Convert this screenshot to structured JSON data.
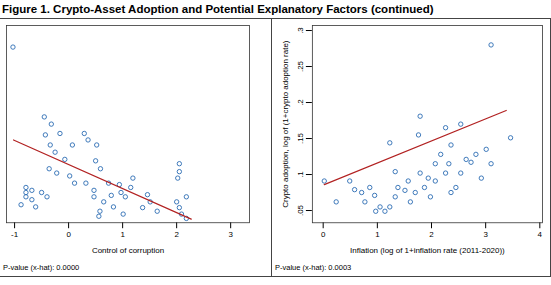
{
  "title": "Figure 1. Crypto-Asset Adoption and Potential Explanatory Factors (continued)",
  "chart_data": [
    {
      "type": "scatter",
      "x_label": "Control of corruption",
      "annotations": [
        "P-value (x-hat): 0.0000"
      ],
      "xlim": [
        -1.15,
        3.35
      ],
      "xticks": [
        -1,
        0,
        1,
        2,
        3
      ],
      "ylim": [
        0.033,
        0.307
      ],
      "tick_labels": "x",
      "series": [
        {
          "type": "scatter",
          "marker": "circle",
          "color": "#2a6bb3",
          "x": [
            -1.03,
            -0.45,
            -0.32,
            -0.16,
            -0.43,
            -0.34,
            -0.25,
            -0.07,
            0.07,
            -0.36,
            -0.22,
            0.02,
            0.11,
            -0.79,
            -0.79,
            -0.79,
            -0.68,
            -0.68,
            -0.88,
            -0.61,
            -0.5,
            -0.4,
            0.29,
            0.36,
            0.52,
            0.5,
            0.59,
            0.32,
            0.47,
            0.74,
            0.79,
            0.94,
            0.97,
            1.05,
            1.15,
            1.19,
            0.56,
            0.58,
            1.01,
            1.37,
            1.46,
            1.51,
            1.64,
            2.0,
            2.05,
            2.09,
            2.18,
            2.05,
            2.05,
            2.02,
            2.18,
            0.47,
            0.65,
            0.83
          ],
          "values": [
            0.277,
            0.18,
            0.17,
            0.157,
            0.155,
            0.141,
            0.131,
            0.121,
            0.141,
            0.108,
            0.102,
            0.098,
            0.088,
            0.082,
            0.075,
            0.069,
            0.078,
            0.065,
            0.058,
            0.055,
            0.075,
            0.069,
            0.157,
            0.148,
            0.141,
            0.119,
            0.108,
            0.088,
            0.078,
            0.088,
            0.071,
            0.086,
            0.075,
            0.069,
            0.082,
            0.095,
            0.042,
            0.049,
            0.045,
            0.054,
            0.072,
            0.062,
            0.049,
            0.062,
            0.054,
            0.045,
            0.039,
            0.115,
            0.104,
            0.095,
            0.069,
            0.069,
            0.062,
            0.055
          ]
        },
        {
          "type": "line",
          "color": "#b22222",
          "x": [
            -1.02,
            2.27
          ],
          "values": [
            0.148,
            0.038
          ]
        }
      ]
    },
    {
      "type": "scatter",
      "x_label": "Inflation (log of 1+inflation rate (2011-2020))",
      "y_label": "Crypto adoption, log of (1+crypto adoption rate)",
      "annotations": [
        "P-value (x-hat): 0.0003"
      ],
      "xlim": [
        -0.2,
        4.05
      ],
      "xticks": [
        0,
        1,
        2,
        3,
        4
      ],
      "ylim": [
        0.033,
        0.307
      ],
      "yticks": [
        {
          "value": 0.05,
          "label": ".05"
        },
        {
          "value": 0.1,
          "label": ".1"
        },
        {
          "value": 0.15,
          "label": ".15"
        },
        {
          "value": 0.2,
          "label": ".2"
        },
        {
          "value": 0.25,
          "label": ".25"
        },
        {
          "value": 0.3,
          "label": ".3"
        }
      ],
      "series": [
        {
          "type": "scatter",
          "marker": "circle",
          "color": "#2a6bb3",
          "x": [
            0.24,
            0.02,
            0.49,
            0.58,
            0.86,
            0.95,
            0.71,
            0.77,
            1.05,
            1.14,
            1.23,
            0.97,
            1.33,
            1.38,
            1.51,
            1.57,
            1.61,
            1.7,
            1.79,
            1.87,
            1.94,
            1.98,
            2.07,
            2.17,
            2.26,
            2.36,
            2.32,
            2.45,
            2.54,
            2.64,
            2.73,
            2.82,
            2.92,
            3.01,
            3.1,
            1.33,
            1.23,
            1.76,
            2.26,
            2.54,
            1.79,
            2.07,
            2.36,
            3.1,
            3.46
          ],
          "values": [
            0.062,
            0.091,
            0.091,
            0.079,
            0.082,
            0.071,
            0.075,
            0.062,
            0.055,
            0.049,
            0.055,
            0.049,
            0.069,
            0.082,
            0.078,
            0.091,
            0.062,
            0.075,
            0.102,
            0.082,
            0.095,
            0.069,
            0.091,
            0.128,
            0.102,
            0.141,
            0.115,
            0.082,
            0.102,
            0.121,
            0.117,
            0.128,
            0.095,
            0.135,
            0.115,
            0.104,
            0.144,
            0.155,
            0.165,
            0.17,
            0.181,
            0.115,
            0.075,
            0.28,
            0.151
          ]
        },
        {
          "type": "line",
          "color": "#b22222",
          "x": [
            0.02,
            3.38
          ],
          "values": [
            0.086,
            0.189
          ]
        }
      ]
    }
  ]
}
